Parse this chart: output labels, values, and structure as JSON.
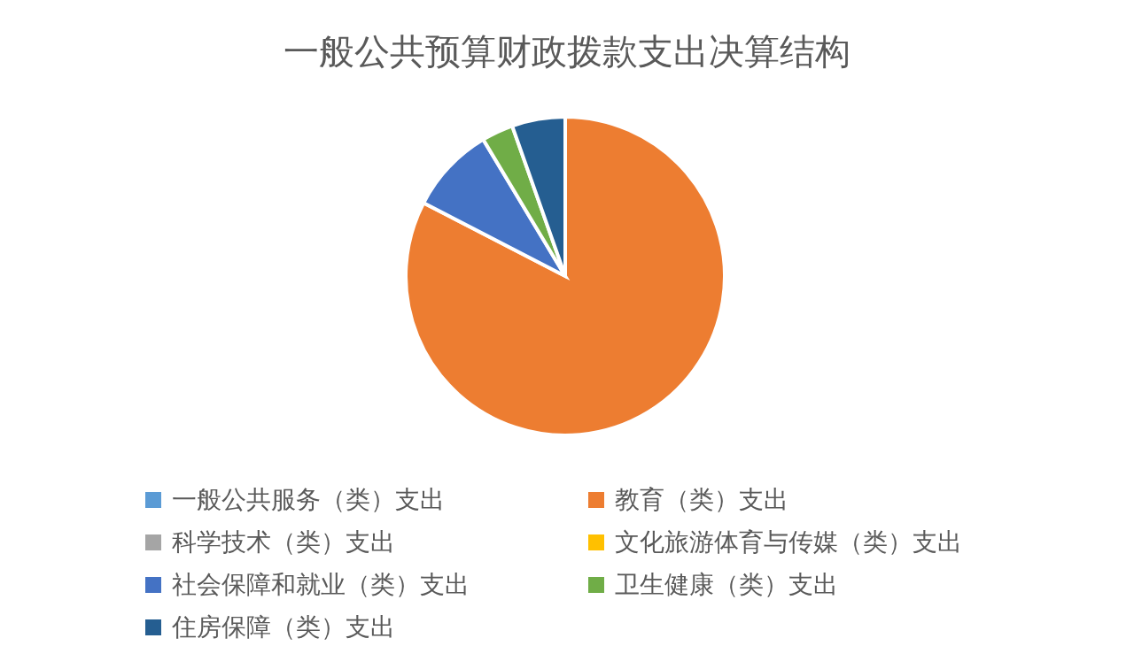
{
  "chart_data": {
    "type": "pie",
    "title": "一般公共预算财政拨款支出决算结构",
    "categories": [
      "一般公共服务（类）支出",
      "教育（类）支出",
      "科学技术（类）支出",
      "文化旅游体育与传媒（类）支出",
      "社会保障和就业（类）支出",
      "卫生健康（类）支出",
      "住房保障（类）支出"
    ],
    "values": [
      0,
      82.6,
      0,
      0,
      8.8,
      3.2,
      5.4
    ],
    "colors": [
      "#5b9bd5",
      "#ed7d31",
      "#a5a5a5",
      "#ffc000",
      "#4472c4",
      "#70ad47",
      "#255e91"
    ],
    "legend": "bottom"
  }
}
